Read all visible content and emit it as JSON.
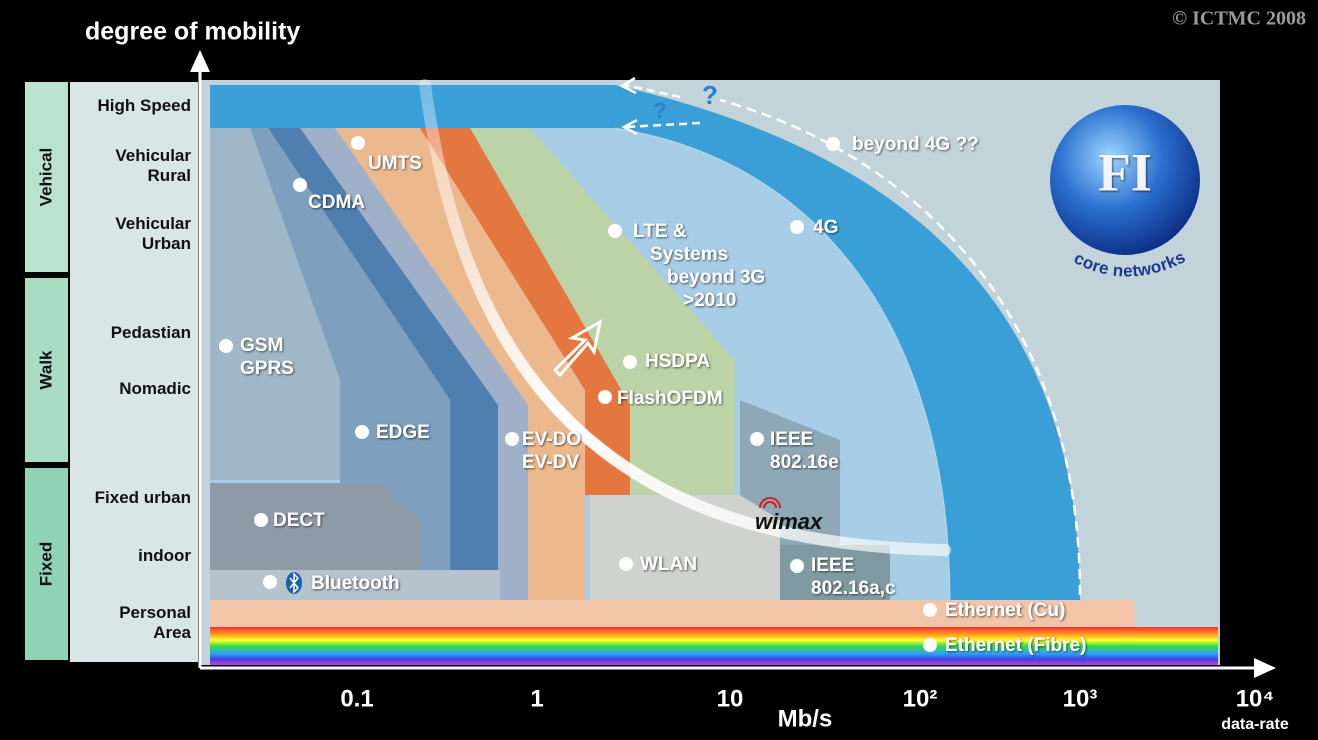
{
  "copyright": "© ICTMC 2008",
  "y_axis_title": "degree of mobility",
  "x_axis": {
    "unit": "Mb/s",
    "title": "data-rate",
    "ticks": [
      "0.1",
      "1",
      "10",
      "10²",
      "10³",
      "10⁴"
    ]
  },
  "groups": [
    {
      "label": "Vehical",
      "levels": [
        [
          "High Speed"
        ],
        [
          "Vehicular",
          "Rural"
        ],
        [
          "Vehicular",
          "Urban"
        ]
      ]
    },
    {
      "label": "Walk",
      "levels": [
        [
          "Pedastian"
        ],
        [
          "Nomadic"
        ]
      ]
    },
    {
      "label": "Fixed",
      "levels": [
        [
          "Fixed urban"
        ],
        [
          "indoor"
        ],
        [
          "Personal",
          "Area"
        ]
      ]
    }
  ],
  "technologies": [
    {
      "lines": [
        "UMTS"
      ]
    },
    {
      "lines": [
        "CDMA"
      ]
    },
    {
      "lines": [
        "GSM",
        "GPRS"
      ]
    },
    {
      "lines": [
        "EDGE"
      ]
    },
    {
      "lines": [
        "EV-DO",
        "EV-DV"
      ]
    },
    {
      "lines": [
        "HSDPA"
      ]
    },
    {
      "lines": [
        "FlashOFDM"
      ]
    },
    {
      "lines": [
        "LTE &",
        "Systems",
        "beyond 3G",
        ">2010"
      ]
    },
    {
      "lines": [
        "beyond 4G ??"
      ]
    },
    {
      "lines": [
        "4G"
      ]
    },
    {
      "lines": [
        "IEEE",
        "802.16e"
      ]
    },
    {
      "lines": [
        "DECT"
      ]
    },
    {
      "lines": [
        "Bluetooth"
      ]
    },
    {
      "lines": [
        "WLAN"
      ]
    },
    {
      "lines": [
        "IEEE",
        "802.16a,c"
      ]
    },
    {
      "lines": [
        "Ethernet (Cu)"
      ]
    },
    {
      "lines": [
        "Ethernet (Fibre)"
      ]
    }
  ],
  "wimax": "wimax",
  "question_marks": [
    "?",
    "?"
  ],
  "logo": {
    "letters": "FI",
    "caption": "core networks"
  }
}
